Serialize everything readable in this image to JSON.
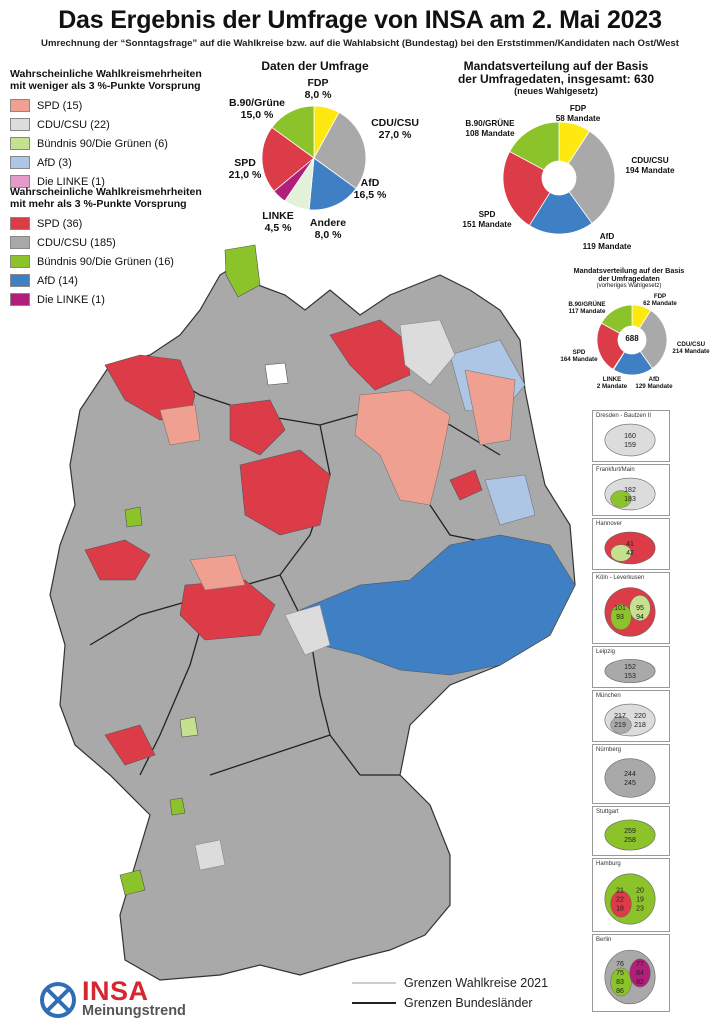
{
  "title": "Das Ergebnis der Umfrage von INSA am 2. Mai 2023",
  "subtitle": "Umrechnung der “Sonntagsfrage” auf die Wahlkreise bzw. auf die Wahlabsicht (Bundestag) bei den Erststimmen/Kandidaten nach Ost/West",
  "colors": {
    "spd_light": "#f0a090",
    "cdu_light": "#dcdcdc",
    "gruene_light": "#c5e08e",
    "afd_light": "#aec6e6",
    "linke_light": "#e59ac9",
    "spd": "#dc3b48",
    "cdu": "#a9a9a9",
    "gruene": "#8cc22a",
    "afd": "#3f7fc4",
    "linke": "#b0207a",
    "fdp": "#fde910",
    "andere": "#e3f1da"
  },
  "legend_low": {
    "heading_line1": "Wahrscheinliche Wahlkreismehrheiten",
    "heading_line2": "mit weniger als 3 %-Punkte Vorsprung",
    "items": [
      {
        "label": "SPD (15)",
        "color": "#f0a090"
      },
      {
        "label": "CDU/CSU (22)",
        "color": "#dcdcdc"
      },
      {
        "label": "Bündnis 90/Die Grünen (6)",
        "color": "#c5e08e"
      },
      {
        "label": "AfD (3)",
        "color": "#aec6e6"
      },
      {
        "label": "Die LINKE (1)",
        "color": "#e59ac9"
      }
    ]
  },
  "legend_high": {
    "heading_line1": "Wahrscheinliche Wahlkreismehrheiten",
    "heading_line2": "mit mehr als 3 %-Punkte Vorsprung",
    "items": [
      {
        "label": "SPD (36)",
        "color": "#dc3b48"
      },
      {
        "label": "CDU/CSU (185)",
        "color": "#a9a9a9"
      },
      {
        "label": "Bündnis 90/Die Grünen (16)",
        "color": "#8cc22a"
      },
      {
        "label": "AfD (14)",
        "color": "#3f7fc4"
      },
      {
        "label": "Die LINKE (1)",
        "color": "#b0207a"
      }
    ]
  },
  "chart_data": [
    {
      "type": "pie",
      "title": "Daten der Umfrage",
      "slices": [
        {
          "name": "FDP",
          "value": 8.0,
          "label": "8,0 %",
          "color": "#fde910"
        },
        {
          "name": "CDU/CSU",
          "value": 27.0,
          "label": "27,0 %",
          "color": "#a9a9a9"
        },
        {
          "name": "AfD",
          "value": 16.5,
          "label": "16,5 %",
          "color": "#3f7fc4"
        },
        {
          "name": "Andere",
          "value": 8.0,
          "label": "8,0 %",
          "color": "#e3f1da"
        },
        {
          "name": "LINKE",
          "value": 4.5,
          "label": "4,5 %",
          "color": "#b0207a"
        },
        {
          "name": "SPD",
          "value": 21.0,
          "label": "21,0 %",
          "color": "#dc3b48"
        },
        {
          "name": "B.90/Grüne",
          "value": 15.0,
          "label": "15,0 %",
          "color": "#8cc22a"
        }
      ]
    },
    {
      "type": "pie",
      "title_line1": "Mandatsverteilung auf der Basis",
      "title_line2": "der Umfragedaten, insgesamt: 630",
      "title_line3": "(neues Wahlgesetz)",
      "slices": [
        {
          "name": "FDP",
          "value": 58,
          "label": "58 Mandate",
          "color": "#fde910"
        },
        {
          "name": "CDU/CSU",
          "value": 194,
          "label": "194 Mandate",
          "color": "#a9a9a9"
        },
        {
          "name": "AfD",
          "value": 119,
          "label": "119 Mandate",
          "color": "#3f7fc4"
        },
        {
          "name": "SPD",
          "value": 151,
          "label": "151 Mandate",
          "color": "#dc3b48"
        },
        {
          "name": "B.90/GRÜNE",
          "value": 108,
          "label": "108 Mandate",
          "color": "#8cc22a"
        }
      ]
    },
    {
      "type": "pie",
      "title_line1": "Mandatsverteilung auf der Basis",
      "title_line2": "der Umfragedaten",
      "title_line3": "(vorheriges Wahlgesetz)",
      "center": "688",
      "slices": [
        {
          "name": "FDP",
          "value": 62,
          "label": "62 Mandate",
          "color": "#fde910"
        },
        {
          "name": "CDU/CSU",
          "value": 214,
          "label": "214 Mandate",
          "color": "#a9a9a9"
        },
        {
          "name": "AfD",
          "value": 129,
          "label": "129 Mandate",
          "color": "#3f7fc4"
        },
        {
          "name": "LINKE",
          "value": 2,
          "label": "2 Mandate",
          "color": "#b0207a"
        },
        {
          "name": "SPD",
          "value": 164,
          "label": "164 Mandate",
          "color": "#dc3b48"
        },
        {
          "name": "B.90/GRÜNE",
          "value": 117,
          "label": "117 Mandate",
          "color": "#8cc22a"
        }
      ]
    }
  ],
  "insets": [
    {
      "title": "Dresden - Bautzen II",
      "numbers": [
        "160",
        "159"
      ]
    },
    {
      "title": "Frankfurt/Main",
      "numbers": [
        "182",
        "183"
      ]
    },
    {
      "title": "Hannover",
      "numbers": [
        "41",
        "42"
      ]
    },
    {
      "title": "Köln - Leverkusen",
      "numbers": [
        "101",
        "95",
        "93",
        "94"
      ]
    },
    {
      "title": "Leipzig",
      "numbers": [
        "152",
        "153"
      ]
    },
    {
      "title": "München",
      "numbers": [
        "217",
        "220",
        "219",
        "218"
      ]
    },
    {
      "title": "Nürnberg",
      "numbers": [
        "244",
        "245"
      ]
    },
    {
      "title": "Stuttgart",
      "numbers": [
        "259",
        "258"
      ]
    },
    {
      "title": "Hamburg",
      "numbers": [
        "21",
        "20",
        "22",
        "19",
        "18",
        "23"
      ]
    },
    {
      "title": "Berlin",
      "numbers": [
        "76",
        "77",
        "75",
        "84",
        "83",
        "82",
        "86"
      ]
    }
  ],
  "footer": {
    "line_wahlkreise": "Grenzen Wahlkreise 2021",
    "line_bundeslaender": "Grenzen Bundesländer",
    "logo_main": "INSA",
    "logo_sub": "Meinungstrend"
  }
}
